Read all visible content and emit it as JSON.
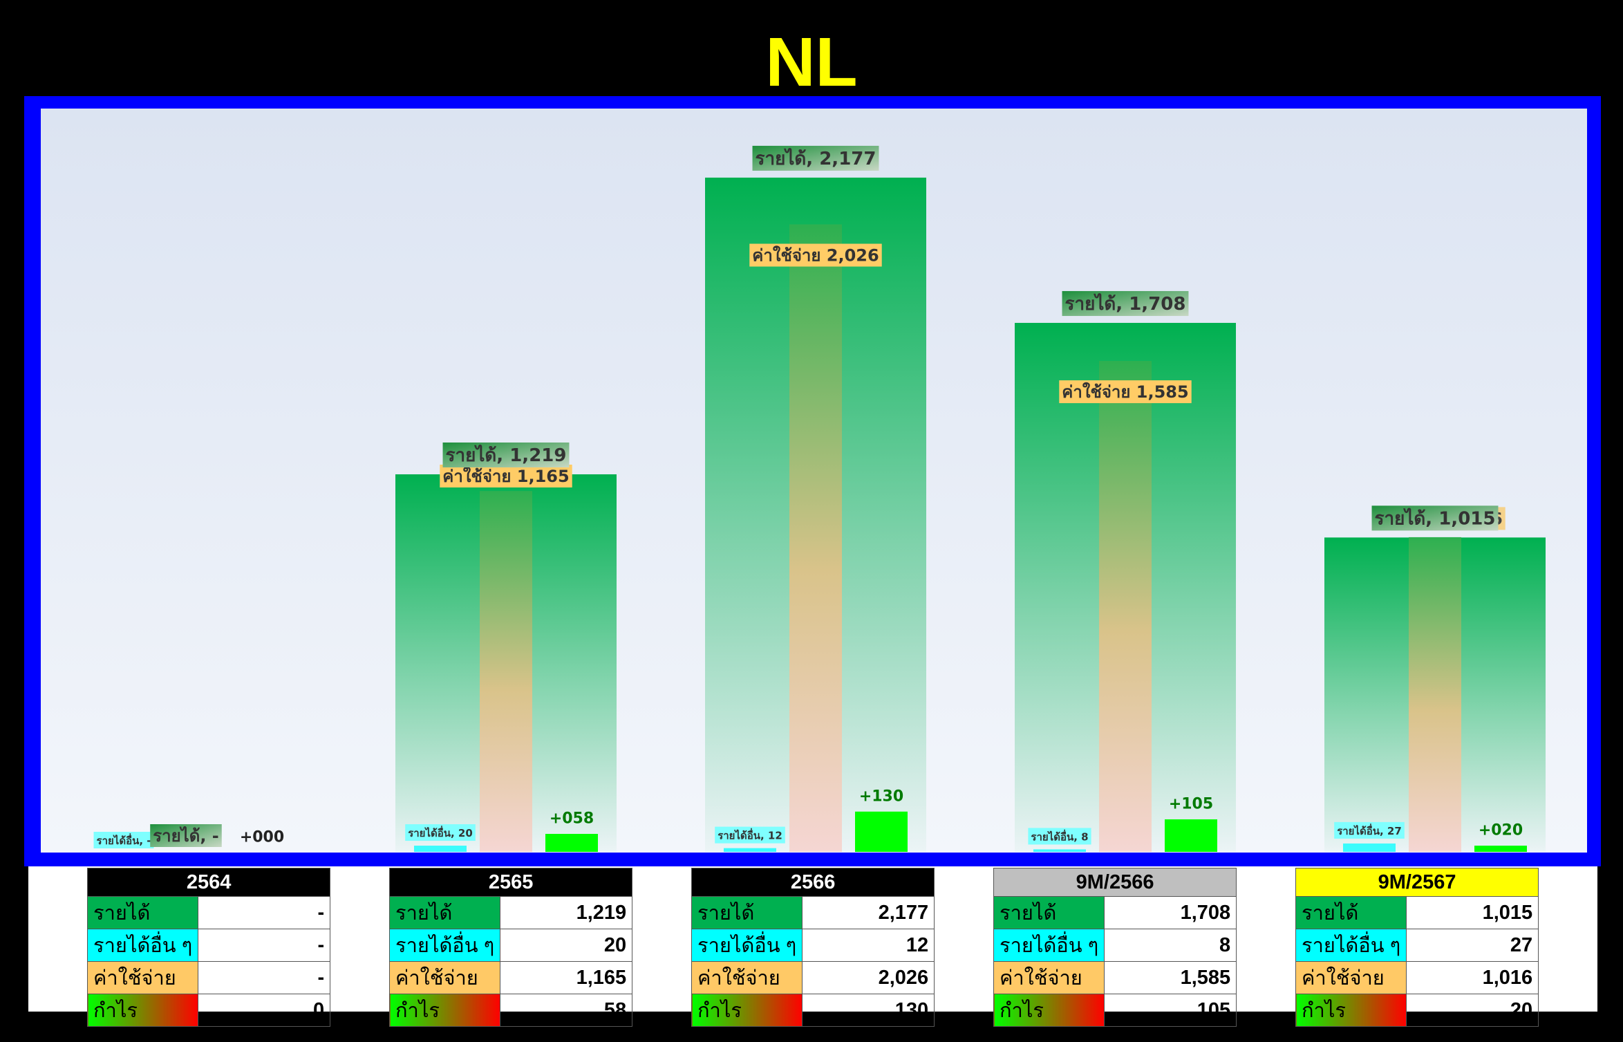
{
  "title": "NL",
  "colors": {
    "background": "#000000",
    "frame": "#0000ff",
    "title": "#ffff00",
    "revenue": "#00b050",
    "other_income": "#00ffff",
    "expense": "#ffc000",
    "profit": "#00ff00",
    "profit_label": "#007a00"
  },
  "chart_data": {
    "type": "bar",
    "title": "NL",
    "categories": [
      "2564",
      "2565",
      "2566",
      "9M/2566",
      "9M/2567"
    ],
    "series": [
      {
        "name": "รายได้",
        "values": [
          0,
          1219,
          2177,
          1708,
          1015
        ]
      },
      {
        "name": "รายได้อื่น",
        "values": [
          0,
          20,
          12,
          8,
          27
        ]
      },
      {
        "name": "ค่าใช้จ่าย",
        "values": [
          0,
          1165,
          2026,
          1585,
          1016
        ]
      },
      {
        "name": "กำไร",
        "values": [
          0,
          58,
          130,
          105,
          20
        ]
      }
    ],
    "ylim": [
      0,
      2400
    ],
    "grid": false,
    "data_labels": {
      "revenue": [
        "รายได้, -",
        "รายได้, 1,219",
        "รายได้, 2,177",
        "รายได้, 1,708",
        "รายได้, 1,015"
      ],
      "other_income": [
        "รายได้อื่น, -",
        "รายได้อื่น, 20",
        "รายได้อื่น, 12",
        "รายได้อื่น, 8",
        "รายได้อื่น, 27"
      ],
      "expense": [
        "ค่าใช้จ่าย -",
        "ค่าใช้จ่าย 1,165",
        "ค่าใช้จ่าย 2,026",
        "ค่าใช้จ่าย 1,585",
        "ค่าใช้จ่าย 1,016"
      ],
      "profit": [
        "+000",
        "+058",
        "+130",
        "+105",
        "+020"
      ]
    }
  },
  "tables": [
    {
      "header": "2564",
      "header_bg": "#000000",
      "header_color": "#ffffff",
      "rows": [
        {
          "label": "รายได้",
          "value": "-"
        },
        {
          "label": "รายได้อื่น ๆ",
          "value": "-"
        },
        {
          "label": "ค่าใช้จ่าย",
          "value": "-"
        },
        {
          "label": "กำไร",
          "value": "0"
        }
      ]
    },
    {
      "header": "2565",
      "header_bg": "#000000",
      "header_color": "#ffffff",
      "rows": [
        {
          "label": "รายได้",
          "value": "1,219"
        },
        {
          "label": "รายได้อื่น ๆ",
          "value": "20"
        },
        {
          "label": "ค่าใช้จ่าย",
          "value": "1,165"
        },
        {
          "label": "กำไร",
          "value": "58"
        }
      ]
    },
    {
      "header": "2566",
      "header_bg": "#000000",
      "header_color": "#ffffff",
      "rows": [
        {
          "label": "รายได้",
          "value": "2,177"
        },
        {
          "label": "รายได้อื่น ๆ",
          "value": "12"
        },
        {
          "label": "ค่าใช้จ่าย",
          "value": "2,026"
        },
        {
          "label": "กำไร",
          "value": "130"
        }
      ]
    },
    {
      "header": "9M/2566",
      "header_bg": "#bfbfbf",
      "header_color": "#000000",
      "rows": [
        {
          "label": "รายได้",
          "value": "1,708"
        },
        {
          "label": "รายได้อื่น ๆ",
          "value": "8"
        },
        {
          "label": "ค่าใช้จ่าย",
          "value": "1,585"
        },
        {
          "label": "กำไร",
          "value": "105"
        }
      ]
    },
    {
      "header": "9M/2567",
      "header_bg": "#ffff00",
      "header_color": "#000000",
      "rows": [
        {
          "label": "รายได้",
          "value": "1,015"
        },
        {
          "label": "รายได้อื่น ๆ",
          "value": "27"
        },
        {
          "label": "ค่าใช้จ่าย",
          "value": "1,016"
        },
        {
          "label": "กำไร",
          "value": "20"
        }
      ]
    }
  ]
}
